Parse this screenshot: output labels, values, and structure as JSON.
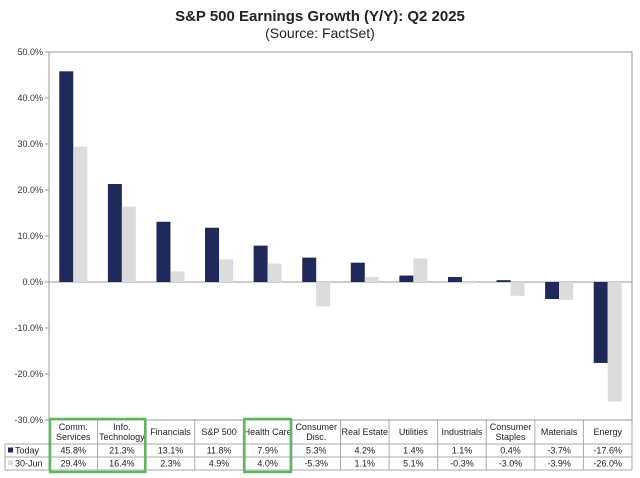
{
  "chart_data": {
    "type": "bar",
    "title": "S&P 500 Earnings Growth (Y/Y): Q2 2025",
    "subtitle": "(Source: FactSet)",
    "categories": [
      [
        "Comm.",
        "Services"
      ],
      [
        "Info.",
        "Technology"
      ],
      [
        "Financials"
      ],
      [
        "S&P 500"
      ],
      [
        "Health Care"
      ],
      [
        "Consumer",
        "Disc."
      ],
      [
        "Real Estate"
      ],
      [
        "Utilities"
      ],
      [
        "Industrials"
      ],
      [
        "Consumer",
        "Staples"
      ],
      [
        "Materials"
      ],
      [
        "Energy"
      ]
    ],
    "series": [
      {
        "name": "Today",
        "color": "#1f2a5a",
        "values": [
          45.8,
          21.3,
          13.1,
          11.8,
          7.9,
          5.3,
          4.2,
          1.4,
          1.1,
          0.4,
          -3.7,
          -17.6
        ],
        "labels": [
          "45.8%",
          "21.3%",
          "13.1%",
          "11.8%",
          "7.9%",
          "5.3%",
          "4.2%",
          "1.4%",
          "1.1%",
          "0.4%",
          "-3.7%",
          "-17.6%"
        ]
      },
      {
        "name": "30-Jun",
        "color": "#dcdcdc",
        "values": [
          29.4,
          16.4,
          2.3,
          4.9,
          4.0,
          -5.3,
          1.1,
          5.1,
          -0.3,
          -3.0,
          -3.9,
          -26.0
        ],
        "labels": [
          "29.4%",
          "16.4%",
          "2.3%",
          "4.9%",
          "4.0%",
          "-5.3%",
          "1.1%",
          "5.1%",
          "-0.3%",
          "-3.0%",
          "-3.9%",
          "-26.0%"
        ]
      }
    ],
    "ylim": [
      -30,
      50
    ],
    "yticks": [
      -30,
      -20,
      -10,
      0,
      10,
      20,
      30,
      40,
      50
    ],
    "ytick_labels": [
      "-30.0%",
      "-20.0%",
      "-10.0%",
      "0.0%",
      "10.0%",
      "20.0%",
      "30.0%",
      "40.0%",
      "50.0%"
    ],
    "legend": "data-table",
    "highlighted_categories": [
      0,
      1,
      4
    ],
    "highlight_color": "#5cb85c"
  }
}
